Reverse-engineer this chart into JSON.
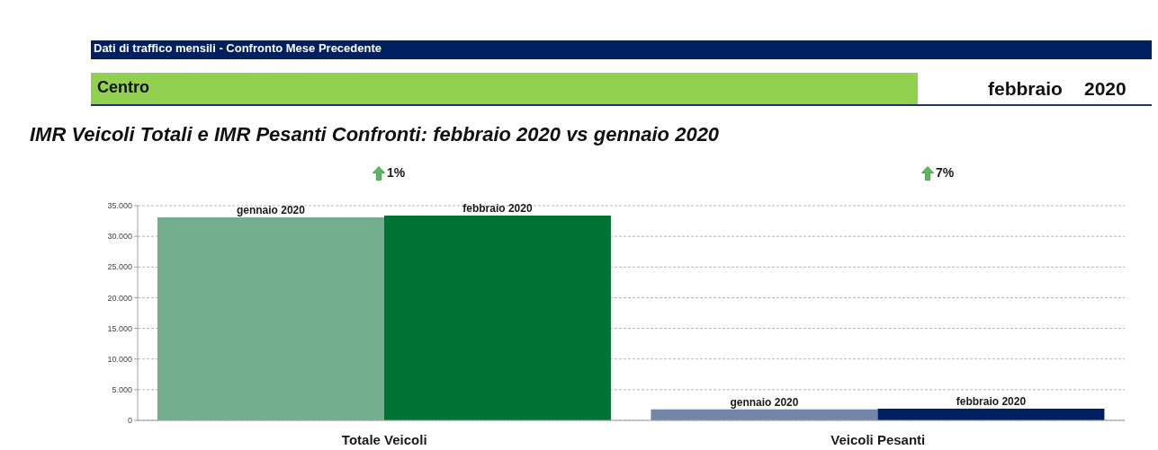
{
  "chart_data": {
    "type": "bar",
    "title": "IMR Veicoli Totali e IMR Pesanti Confronti: febbraio 2020 vs gennaio 2020",
    "annotations": [
      "Dati di traffico mensili - Confronto Mese Precedente",
      "Centro",
      "febbraio",
      "2020",
      "1%",
      "7%"
    ],
    "categories": [
      "Totale Veicoli",
      "Veicoli Pesanti"
    ],
    "series": [
      {
        "name": "gennaio 2020",
        "colors": [
          "#73ae8f",
          "#7386a8"
        ],
        "values": [
          33100,
          1800
        ],
        "value_labels": [
          null,
          "gennaio 2020"
        ]
      },
      {
        "name": "febbraio 2020",
        "colors": [
          "#007233",
          "#002060"
        ],
        "values": [
          33400,
          1900
        ],
        "value_labels": [
          null,
          "febbraio 2020"
        ]
      }
    ],
    "ylim": [
      0,
      35000
    ],
    "yticks": [
      0,
      {
        "value": 5000,
        "label": "5.000"
      },
      {
        "value": 10000,
        "label": "10.000"
      },
      {
        "value": 15000,
        "label": "15.000"
      },
      {
        "value": 20000,
        "label": "20.000"
      },
      {
        "value": 25000,
        "label": "25.000"
      },
      {
        "value": 30000,
        "label": "30.000"
      },
      {
        "value": 35000,
        "label": "35.000"
      }
    ],
    "grid": "y"
  }
}
